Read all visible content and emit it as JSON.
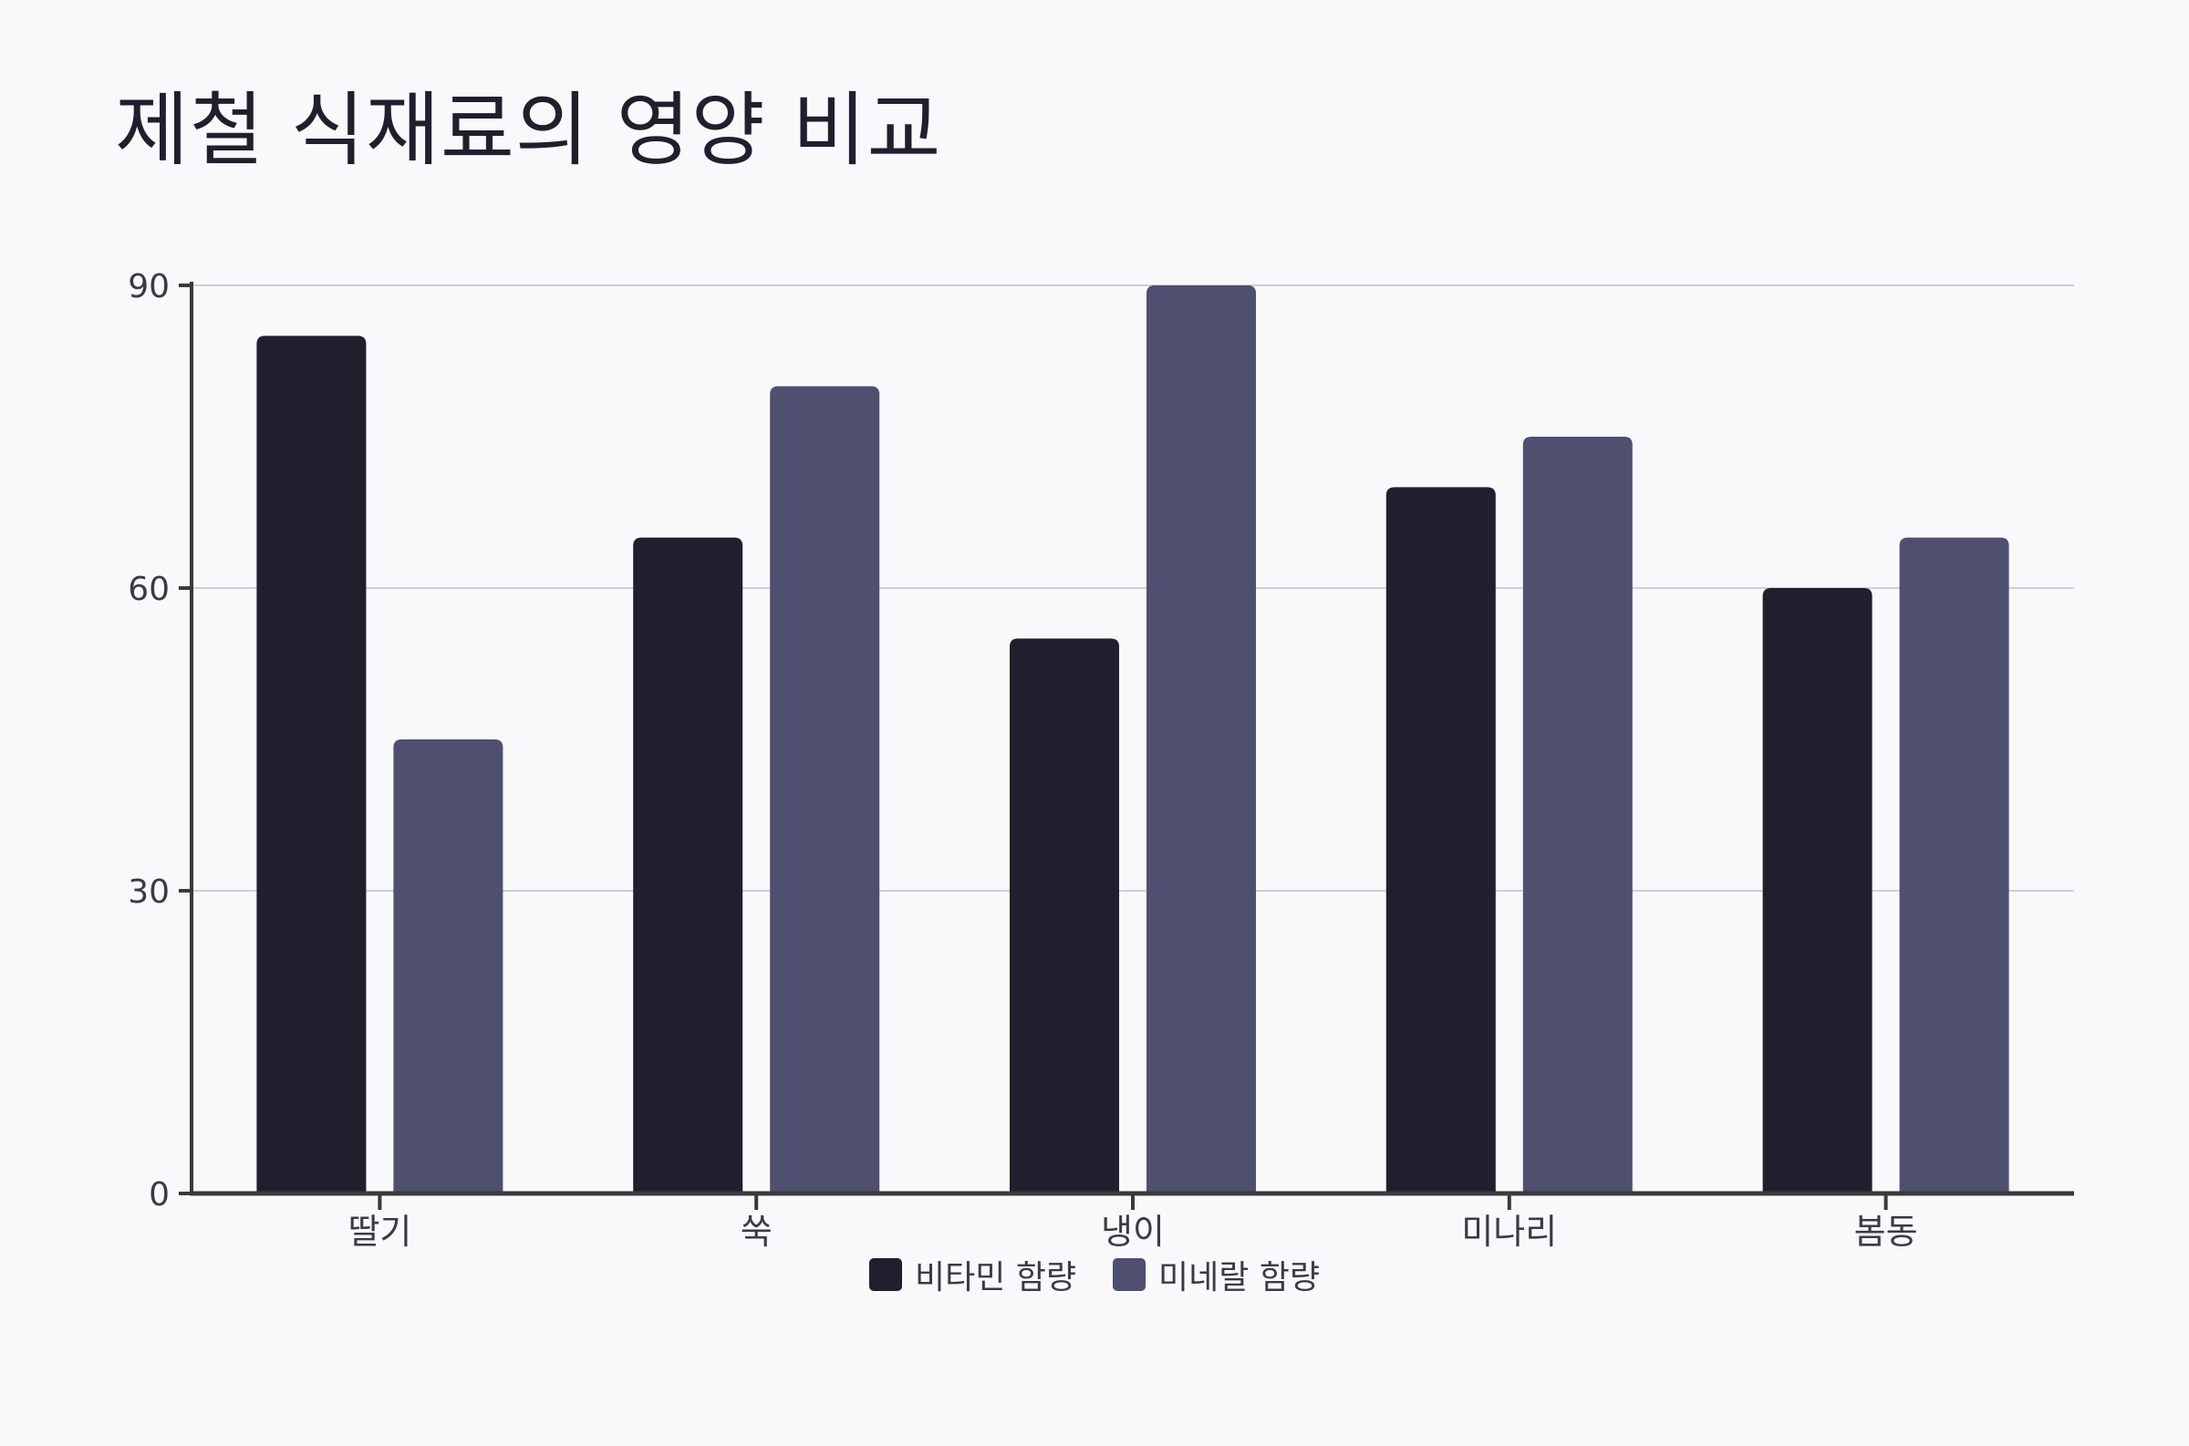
{
  "chart_data": {
    "type": "bar",
    "title": "제철 식재료의 영양 비교",
    "xlabel": "",
    "ylabel": "",
    "categories": [
      "딸기",
      "쑥",
      "냉이",
      "미나리",
      "봄동"
    ],
    "series": [
      {
        "name": "비타민 함량",
        "values": [
          85,
          65,
          55,
          70,
          60
        ],
        "color": "#1f1f2e"
      },
      {
        "name": "미네랄 함량",
        "values": [
          45,
          80,
          90,
          75,
          65
        ],
        "color": "#4f4f70"
      }
    ],
    "ylim": [
      0,
      90
    ],
    "yticks": [
      0,
      30,
      60,
      90
    ],
    "grid": true,
    "legend_position": "bottom"
  }
}
